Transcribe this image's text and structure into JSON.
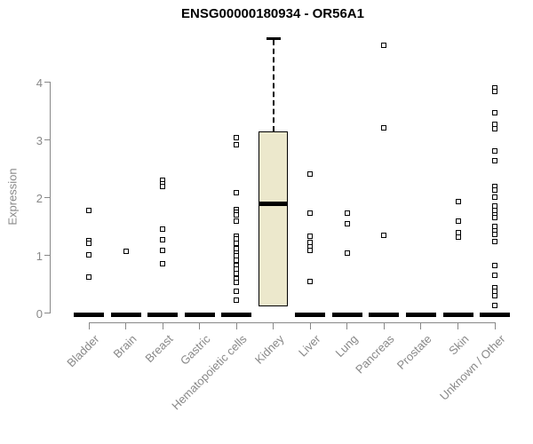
{
  "title": "ENSG00000180934 - OR56A1",
  "chart_data": {
    "type": "boxplot",
    "title": "ENSG00000180934 - OR56A1",
    "xlabel": "",
    "ylabel": "Expression",
    "y_ticks": [
      0,
      1,
      2,
      3,
      4
    ],
    "ylim": [
      0,
      4.9
    ],
    "grid": false,
    "legend": "none",
    "categories": [
      "Bladder",
      "Brain",
      "Breast",
      "Gastric",
      "Hematopoietic cells",
      "Kidney",
      "Liver",
      "Lung",
      "Pancreas",
      "Prostate",
      "Skin",
      "Unknown / Other"
    ],
    "series": [
      {
        "category": "Bladder",
        "zero_bar": true,
        "median": 0,
        "points": [
          1.78,
          1.26,
          1.21,
          1.01,
          0.63
        ]
      },
      {
        "category": "Brain",
        "zero_bar": true,
        "median": 0,
        "points": [
          1.07
        ]
      },
      {
        "category": "Breast",
        "zero_bar": true,
        "median": 0,
        "points": [
          2.3,
          2.24,
          2.19,
          1.45,
          1.27,
          1.08,
          0.85
        ]
      },
      {
        "category": "Gastric",
        "zero_bar": true,
        "median": 0,
        "points": []
      },
      {
        "category": "Hematopoietic cells",
        "zero_bar": true,
        "median": 0,
        "points": [
          3.04,
          2.92,
          2.09,
          1.79,
          1.75,
          1.71,
          1.6,
          1.34,
          1.28,
          1.21,
          1.11,
          1.04,
          0.99,
          0.91,
          0.83,
          0.76,
          0.68,
          0.6,
          0.53,
          0.37,
          0.23
        ]
      },
      {
        "category": "Kidney",
        "zero_bar": false,
        "box": {
          "q1": 0.11,
          "median": 1.89,
          "q3": 3.15,
          "whisker_high": 4.77
        },
        "points": []
      },
      {
        "category": "Liver",
        "zero_bar": true,
        "median": 0,
        "points": [
          2.41,
          1.73,
          1.33,
          1.22,
          1.15,
          1.08,
          0.55
        ]
      },
      {
        "category": "Lung",
        "zero_bar": true,
        "median": 0,
        "points": [
          1.73,
          1.55,
          1.04
        ]
      },
      {
        "category": "Pancreas",
        "zero_bar": true,
        "median": 0,
        "points": [
          4.64,
          3.22,
          1.35
        ]
      },
      {
        "category": "Prostate",
        "zero_bar": true,
        "median": 0,
        "points": []
      },
      {
        "category": "Skin",
        "zero_bar": true,
        "median": 0,
        "points": [
          1.93,
          1.6,
          1.4,
          1.31
        ]
      },
      {
        "category": "Unknown / Other",
        "zero_bar": true,
        "median": 0,
        "points": [
          3.91,
          3.85,
          3.48,
          3.27,
          3.19,
          2.81,
          2.65,
          2.19,
          2.13,
          2.01,
          1.86,
          1.78,
          1.71,
          1.65,
          1.5,
          1.43,
          1.37,
          1.24,
          0.83,
          0.65,
          0.44,
          0.37,
          0.3,
          0.13
        ]
      }
    ],
    "colors": {
      "box_fill": "#ECE8CC",
      "box_border": "#000000",
      "axis": "#888888",
      "point": "#000000",
      "zero_bar": "#000000",
      "title": "#000000"
    }
  }
}
